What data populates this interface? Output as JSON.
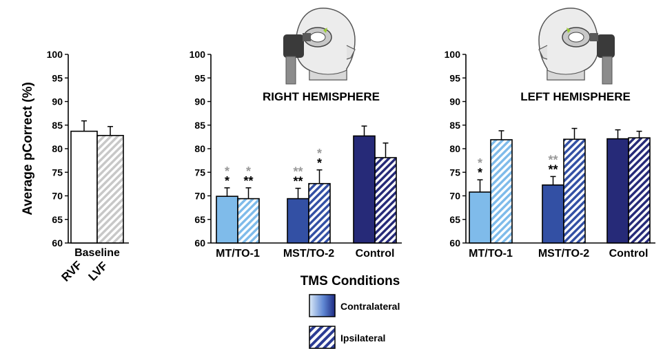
{
  "figure": {
    "ylabel": "Average pCorrect (%)",
    "xlabel": "TMS Conditions",
    "legend": [
      {
        "label": "Contralateral",
        "fill": "contra-gradient"
      },
      {
        "label": "Ipsilateral",
        "fill": "ipsi-stripes"
      }
    ]
  },
  "colors": {
    "mt": "#7fbbea",
    "mst": "#3350a4",
    "control": "#262a78",
    "baseline_stripe": "#c8c8c8",
    "sig_black": "#000000",
    "sig_gray": "#9a9a9a"
  },
  "chart_data": [
    {
      "type": "bar",
      "title": "",
      "categories": [
        "Baseline"
      ],
      "bar_labels": [
        "RVF",
        "LVF"
      ],
      "series": [
        {
          "name": "RVF",
          "values": [
            83.7
          ],
          "errors": [
            2.2
          ]
        },
        {
          "name": "LVF",
          "values": [
            82.8
          ],
          "errors": [
            1.9
          ]
        }
      ],
      "ylim": [
        60,
        100
      ],
      "yticks": [
        "60",
        "65",
        "70",
        "75",
        "80",
        "85",
        "90",
        "95",
        "100"
      ],
      "significance": []
    },
    {
      "type": "bar",
      "title": "RIGHT HEMISPHERE",
      "categories": [
        "MT/TO-1",
        "MST/TO-2",
        "Control"
      ],
      "series": [
        {
          "name": "Contralateral",
          "values": [
            69.9,
            69.4,
            82.7
          ],
          "errors": [
            1.8,
            2.2,
            2.1
          ]
        },
        {
          "name": "Ipsilateral",
          "values": [
            69.4,
            72.6,
            78.1
          ],
          "errors": [
            2.3,
            2.9,
            3.1
          ]
        }
      ],
      "ylim": [
        60,
        100
      ],
      "yticks": [
        "60",
        "65",
        "70",
        "75",
        "80",
        "85",
        "90",
        "95",
        "100"
      ],
      "significance": [
        {
          "category": 0,
          "series": 0,
          "gray": "*",
          "black": "*"
        },
        {
          "category": 0,
          "series": 1,
          "gray": "*",
          "black": "**"
        },
        {
          "category": 1,
          "series": 0,
          "gray": "**",
          "black": "**"
        },
        {
          "category": 1,
          "series": 1,
          "gray": "*",
          "black": "*"
        }
      ]
    },
    {
      "type": "bar",
      "title": "LEFT HEMISPHERE",
      "categories": [
        "MT/TO-1",
        "MST/TO-2",
        "Control"
      ],
      "series": [
        {
          "name": "Contralateral",
          "values": [
            70.8,
            72.3,
            82.1
          ],
          "errors": [
            2.6,
            1.8,
            1.9
          ]
        },
        {
          "name": "Ipsilateral",
          "values": [
            81.9,
            82.0,
            82.3
          ],
          "errors": [
            1.9,
            2.3,
            1.4
          ]
        }
      ],
      "ylim": [
        60,
        100
      ],
      "yticks": [
        "60",
        "65",
        "70",
        "75",
        "80",
        "85",
        "90",
        "95",
        "100"
      ],
      "significance": [
        {
          "category": 0,
          "series": 0,
          "gray": "*",
          "black": "*"
        },
        {
          "category": 1,
          "series": 0,
          "gray": "**",
          "black": "**"
        }
      ]
    }
  ]
}
